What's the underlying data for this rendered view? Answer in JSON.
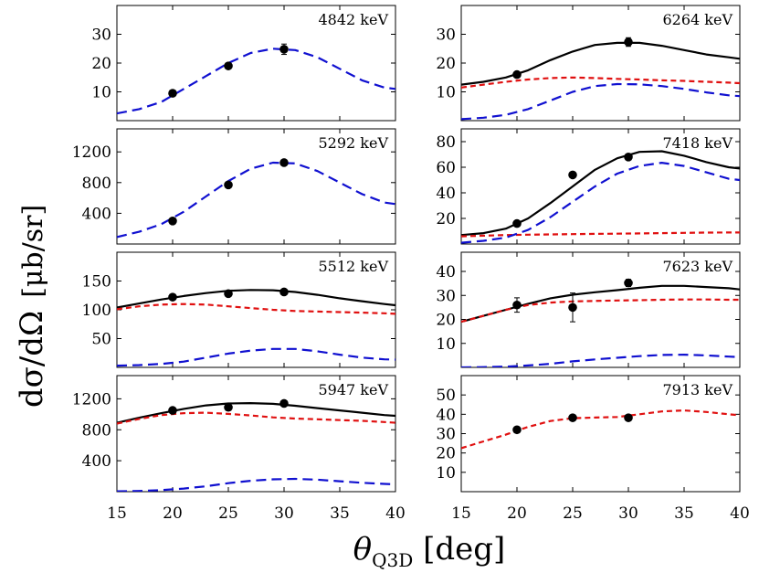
{
  "figure": {
    "ylabel": "dσ/dΩ  [μb/sr]",
    "xlabel": "θQ3D [deg]",
    "xlabel_main": "θ",
    "xlabel_sub": "Q3D",
    "xlabel_unit": " [deg]",
    "ylabel_left": "dσ/dΩ",
    "ylabel_right": "[μb/sr]"
  },
  "colors": {
    "total": "#000000",
    "red_component": "#e01010",
    "blue_component": "#1010d0"
  },
  "chart_data": [
    {
      "type": "line",
      "title": "4842 keV",
      "xlim": [
        15,
        40
      ],
      "ylim": [
        0,
        40
      ],
      "yticks": [
        10,
        20,
        30
      ],
      "xticks": [
        15,
        20,
        25,
        30,
        35,
        40
      ],
      "data_points": [
        {
          "x": 20,
          "y": 9.5,
          "err": 0.6
        },
        {
          "x": 25,
          "y": 19,
          "err": 0.8
        },
        {
          "x": 30,
          "y": 24.8,
          "err": 1.8
        }
      ],
      "series": [
        {
          "style": "blue",
          "x": [
            15,
            17,
            19,
            21,
            23,
            25,
            27,
            29,
            31,
            33,
            35,
            37,
            39,
            40
          ],
          "y": [
            2.5,
            4,
            6.5,
            11,
            15.5,
            20,
            23.5,
            25,
            24.5,
            22,
            18,
            14,
            11.5,
            11
          ]
        }
      ]
    },
    {
      "type": "line",
      "title": "6264 keV",
      "xlim": [
        15,
        40
      ],
      "ylim": [
        0,
        40
      ],
      "yticks": [
        10,
        20,
        30
      ],
      "xticks": [
        15,
        20,
        25,
        30,
        35,
        40
      ],
      "data_points": [
        {
          "x": 20,
          "y": 16,
          "err": 1
        },
        {
          "x": 30,
          "y": 27.3,
          "err": 1.5
        }
      ],
      "series": [
        {
          "style": "black",
          "x": [
            15,
            17,
            19,
            21,
            23,
            25,
            27,
            29,
            31,
            33,
            35,
            37,
            39,
            40
          ],
          "y": [
            12.5,
            13.5,
            15,
            17.5,
            21,
            24,
            26.3,
            27,
            27,
            26,
            24.5,
            23,
            22,
            21.5
          ]
        },
        {
          "style": "red",
          "x": [
            15,
            17,
            19,
            21,
            23,
            25,
            27,
            29,
            31,
            33,
            35,
            37,
            39,
            40
          ],
          "y": [
            11.5,
            12.5,
            13.5,
            14.3,
            14.8,
            15,
            14.8,
            14.5,
            14.3,
            14,
            13.8,
            13.5,
            13.2,
            13
          ]
        },
        {
          "style": "blue",
          "x": [
            15,
            17,
            19,
            21,
            23,
            25,
            27,
            29,
            31,
            33,
            35,
            37,
            39,
            40
          ],
          "y": [
            0.5,
            1,
            2,
            4,
            7,
            10,
            12,
            12.7,
            12.6,
            12,
            11,
            9.8,
            8.8,
            8.5
          ]
        }
      ]
    },
    {
      "type": "line",
      "title": "5292 keV",
      "xlim": [
        15,
        40
      ],
      "ylim": [
        0,
        1500
      ],
      "yticks": [
        400,
        800,
        1200
      ],
      "xticks": [
        15,
        20,
        25,
        30,
        35,
        40
      ],
      "data_points": [
        {
          "x": 20,
          "y": 300,
          "err": 25
        },
        {
          "x": 25,
          "y": 770,
          "err": 30
        },
        {
          "x": 30,
          "y": 1060,
          "err": 30
        }
      ],
      "series": [
        {
          "style": "blue",
          "x": [
            15,
            17,
            19,
            21,
            23,
            25,
            27,
            29,
            31,
            33,
            35,
            37,
            39,
            40
          ],
          "y": [
            90,
            160,
            260,
            420,
            620,
            820,
            980,
            1060,
            1050,
            950,
            800,
            650,
            540,
            520
          ]
        }
      ]
    },
    {
      "type": "line",
      "title": "7418 keV",
      "xlim": [
        15,
        40
      ],
      "ylim": [
        0,
        90
      ],
      "yticks": [
        20,
        40,
        60,
        80
      ],
      "xticks": [
        15,
        20,
        25,
        30,
        35,
        40
      ],
      "data_points": [
        {
          "x": 20,
          "y": 16,
          "err": 1.5
        },
        {
          "x": 25,
          "y": 54,
          "err": 1.5
        },
        {
          "x": 30,
          "y": 68,
          "err": 1.5
        }
      ],
      "series": [
        {
          "style": "black",
          "x": [
            15,
            17,
            19,
            21,
            23,
            25,
            27,
            29,
            31,
            33,
            35,
            37,
            39,
            40
          ],
          "y": [
            7,
            8.5,
            12,
            20,
            32,
            45,
            58,
            67,
            72,
            72.5,
            69,
            64,
            60,
            59
          ]
        },
        {
          "style": "red",
          "x": [
            15,
            17,
            19,
            21,
            23,
            25,
            27,
            29,
            31,
            33,
            35,
            37,
            39,
            40
          ],
          "y": [
            6,
            6.5,
            7,
            7.3,
            7.5,
            7.7,
            7.9,
            8.1,
            8.3,
            8.5,
            8.7,
            8.9,
            9,
            9
          ]
        },
        {
          "style": "blue",
          "x": [
            15,
            17,
            19,
            21,
            23,
            25,
            27,
            29,
            31,
            33,
            35,
            37,
            39,
            40
          ],
          "y": [
            1,
            2.5,
            5,
            11,
            21,
            33,
            45,
            55,
            61,
            63.5,
            61,
            56,
            51,
            50
          ]
        }
      ]
    },
    {
      "type": "line",
      "title": "5512 keV",
      "xlim": [
        15,
        40
      ],
      "ylim": [
        0,
        200
      ],
      "yticks": [
        50,
        100,
        150
      ],
      "xticks": [
        15,
        20,
        25,
        30,
        35,
        40
      ],
      "data_points": [
        {
          "x": 20,
          "y": 122,
          "err": 4
        },
        {
          "x": 25,
          "y": 128,
          "err": 4
        },
        {
          "x": 30,
          "y": 131,
          "err": 4
        }
      ],
      "series": [
        {
          "style": "black",
          "x": [
            15,
            17,
            19,
            21,
            23,
            25,
            27,
            29,
            31,
            33,
            35,
            37,
            39,
            40
          ],
          "y": [
            104,
            111,
            118,
            124,
            129,
            133,
            134.5,
            134,
            131,
            126,
            120,
            115,
            110,
            108
          ]
        },
        {
          "style": "red",
          "x": [
            15,
            17,
            19,
            21,
            23,
            25,
            27,
            29,
            31,
            33,
            35,
            37,
            39,
            40
          ],
          "y": [
            101,
            106,
            109,
            110,
            109,
            106,
            103,
            100,
            98,
            97,
            96,
            95,
            94,
            93
          ]
        },
        {
          "style": "blue",
          "x": [
            15,
            17,
            19,
            21,
            23,
            25,
            27,
            29,
            31,
            33,
            35,
            37,
            39,
            40
          ],
          "y": [
            3,
            4,
            6,
            10,
            17,
            24,
            29,
            32,
            32,
            28,
            22,
            17,
            14,
            13.5
          ]
        }
      ]
    },
    {
      "type": "line",
      "title": "7623 keV",
      "xlim": [
        15,
        40
      ],
      "ylim": [
        0,
        48
      ],
      "yticks": [
        10,
        20,
        30,
        40
      ],
      "xticks": [
        15,
        20,
        25,
        30,
        35,
        40
      ],
      "data_points": [
        {
          "x": 20,
          "y": 26,
          "err": 3
        },
        {
          "x": 25,
          "y": 25,
          "err": 6
        },
        {
          "x": 30,
          "y": 35.2,
          "err": 1.5
        }
      ],
      "series": [
        {
          "style": "black",
          "x": [
            15,
            17,
            19,
            21,
            23,
            25,
            27,
            29,
            31,
            33,
            35,
            37,
            39,
            40
          ],
          "y": [
            19,
            21.5,
            24,
            26.5,
            28.8,
            30.3,
            31.3,
            32.2,
            33.2,
            34,
            34,
            33.5,
            33,
            32.5
          ]
        },
        {
          "style": "red",
          "x": [
            15,
            17,
            19,
            21,
            23,
            25,
            27,
            29,
            31,
            33,
            35,
            37,
            39,
            40
          ],
          "y": [
            19,
            21.5,
            24,
            26,
            27,
            27.5,
            27.7,
            27.9,
            28,
            28.2,
            28.3,
            28.3,
            28.2,
            28.2
          ]
        },
        {
          "style": "blue",
          "x": [
            15,
            17,
            19,
            21,
            23,
            25,
            27,
            29,
            31,
            33,
            35,
            37,
            39,
            40
          ],
          "y": [
            0,
            0.1,
            0.3,
            0.8,
            1.5,
            2.5,
            3.3,
            4,
            4.7,
            5.2,
            5.3,
            5,
            4.5,
            4.3
          ]
        }
      ]
    },
    {
      "type": "line",
      "title": "5947 keV",
      "xlim": [
        15,
        40
      ],
      "ylim": [
        0,
        1500
      ],
      "yticks": [
        400,
        800,
        1200
      ],
      "xticks": [
        15,
        20,
        25,
        30,
        35,
        40
      ],
      "data_points": [
        {
          "x": 20,
          "y": 1050,
          "err": 30
        },
        {
          "x": 25,
          "y": 1090,
          "err": 30
        },
        {
          "x": 30,
          "y": 1140,
          "err": 30
        }
      ],
      "series": [
        {
          "style": "black",
          "x": [
            15,
            17,
            19,
            21,
            23,
            25,
            27,
            29,
            31,
            33,
            35,
            37,
            39,
            40
          ],
          "y": [
            890,
            955,
            1015,
            1070,
            1115,
            1140,
            1145,
            1135,
            1110,
            1080,
            1050,
            1020,
            990,
            980
          ]
        },
        {
          "style": "red",
          "x": [
            15,
            17,
            19,
            21,
            23,
            25,
            27,
            29,
            31,
            33,
            35,
            37,
            39,
            40
          ],
          "y": [
            880,
            940,
            990,
            1015,
            1020,
            1005,
            985,
            960,
            945,
            935,
            925,
            915,
            900,
            890
          ]
        },
        {
          "style": "blue",
          "x": [
            15,
            17,
            19,
            21,
            23,
            25,
            27,
            29,
            31,
            33,
            35,
            37,
            39,
            40
          ],
          "y": [
            5,
            10,
            20,
            40,
            70,
            110,
            140,
            160,
            165,
            155,
            135,
            115,
            100,
            95
          ]
        }
      ]
    },
    {
      "type": "line",
      "title": "7913 keV",
      "xlim": [
        15,
        40
      ],
      "ylim": [
        0,
        60
      ],
      "yticks": [
        10,
        20,
        30,
        40,
        50
      ],
      "xticks": [
        15,
        20,
        25,
        30,
        35,
        40
      ],
      "data_points": [
        {
          "x": 20,
          "y": 32,
          "err": 1.5
        },
        {
          "x": 25,
          "y": 38.2,
          "err": 1.5
        },
        {
          "x": 30,
          "y": 38.2,
          "err": 1.5
        }
      ],
      "series": [
        {
          "style": "red",
          "x": [
            15,
            17,
            19,
            21,
            23,
            25,
            27,
            29,
            31,
            33,
            35,
            37,
            39,
            40
          ],
          "y": [
            22.5,
            26,
            29.5,
            33.5,
            36.5,
            38,
            38.3,
            38.6,
            40,
            41.5,
            42,
            41.2,
            40,
            39.5
          ]
        }
      ]
    }
  ]
}
